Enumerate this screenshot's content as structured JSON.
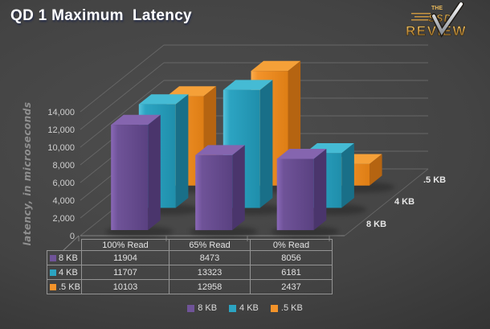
{
  "page": {
    "title": "QD 1 Maximum  Latency"
  },
  "logo": {
    "line1": "THE",
    "line2": "SSD",
    "line3": "REVIEW"
  },
  "chart_data": {
    "type": "bar",
    "projection": "3d-column",
    "title": "QD 1 Maximum  Latency",
    "ylabel": "latency, in microseconds",
    "categories": [
      "100% Read",
      "65% Read",
      "0% Read"
    ],
    "series": [
      {
        "name": "8 KB",
        "values": [
          11904,
          8473,
          8056
        ],
        "color": "#6F5398",
        "color_light": "#8A68B8",
        "color_dark": "#5A4181",
        "color_side": "#4A356C",
        "color_top": "#8565AF"
      },
      {
        "name": "4 KB",
        "values": [
          11707,
          13323,
          6181
        ],
        "color": "#2CA4C2",
        "color_light": "#55C3DC",
        "color_dark": "#1F8EAB",
        "color_side": "#196F88",
        "color_top": "#45BBD4"
      },
      {
        "name": ".5 KB",
        "values": [
          10103,
          12958,
          2437
        ],
        "color": "#F3932A",
        "color_light": "#FAAC4C",
        "color_dark": "#DE7E15",
        "color_side": "#B56411",
        "color_top": "#F5A038"
      }
    ],
    "ylim": [
      0,
      14000
    ],
    "ytick_step": 2000,
    "ytick_labels": [
      "0",
      "2,000",
      "4,000",
      "6,000",
      "8,000",
      "10,000",
      "12,000",
      "14,000"
    ],
    "depth_labels": [
      "8 KB",
      "4 KB",
      ".5 KB"
    ],
    "legend_position": "bottom",
    "grid": true,
    "data_table_shown": true,
    "background_color": "#3d3d3d",
    "text_color": "#ffffff"
  }
}
